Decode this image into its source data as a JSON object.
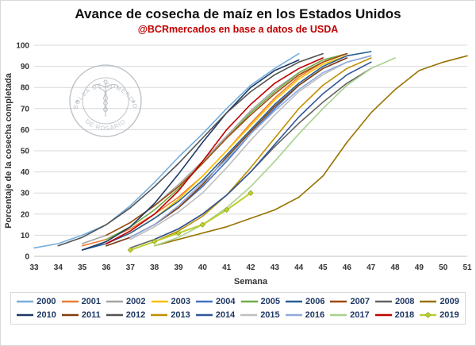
{
  "chart_data": {
    "type": "line",
    "title": "Avance de cosecha de maíz en los Estados Unidos",
    "subtitle": "@BCRmercados en base a datos de USDA",
    "xlabel": "Semana",
    "ylabel": "Porcentaje de la cosecha completada",
    "xlim": [
      33,
      51
    ],
    "ylim": [
      0,
      100
    ],
    "x_ticks": [
      33,
      34,
      35,
      36,
      37,
      38,
      39,
      40,
      41,
      42,
      43,
      44,
      45,
      46,
      47,
      48,
      49,
      50,
      51
    ],
    "y_ticks": [
      0,
      10,
      20,
      30,
      40,
      50,
      60,
      70,
      80,
      90,
      100
    ],
    "grid": "horizontal",
    "legend_position": "bottom",
    "series": [
      {
        "name": "2000",
        "color": "#74AEDC",
        "marker": false,
        "points": [
          [
            33,
            4
          ],
          [
            34,
            6
          ],
          [
            35,
            10
          ],
          [
            36,
            15
          ],
          [
            37,
            24
          ],
          [
            38,
            35
          ],
          [
            39,
            47
          ],
          [
            40,
            58
          ],
          [
            41,
            70
          ],
          [
            42,
            81
          ],
          [
            43,
            89
          ],
          [
            44,
            96
          ]
        ]
      },
      {
        "name": "2001",
        "color": "#ED7D31",
        "marker": false,
        "points": [
          [
            35,
            5
          ],
          [
            36,
            8
          ],
          [
            37,
            13
          ],
          [
            38,
            20
          ],
          [
            39,
            28
          ],
          [
            40,
            38
          ],
          [
            41,
            50
          ],
          [
            42,
            63
          ],
          [
            43,
            75
          ],
          [
            44,
            85
          ],
          [
            45,
            92
          ],
          [
            46,
            96
          ]
        ]
      },
      {
        "name": "2002",
        "color": "#A5A5A5",
        "marker": false,
        "points": [
          [
            35,
            6
          ],
          [
            36,
            10
          ],
          [
            37,
            16
          ],
          [
            38,
            24
          ],
          [
            39,
            34
          ],
          [
            40,
            45
          ],
          [
            41,
            57
          ],
          [
            42,
            69
          ],
          [
            43,
            79
          ],
          [
            44,
            87
          ],
          [
            45,
            93
          ],
          [
            46,
            96
          ]
        ]
      },
      {
        "name": "2003",
        "color": "#FFC000",
        "marker": false,
        "points": [
          [
            36,
            6
          ],
          [
            37,
            11
          ],
          [
            38,
            18
          ],
          [
            39,
            27
          ],
          [
            40,
            38
          ],
          [
            41,
            50
          ],
          [
            42,
            62
          ],
          [
            43,
            74
          ],
          [
            44,
            84
          ],
          [
            45,
            91
          ],
          [
            46,
            95
          ]
        ]
      },
      {
        "name": "2004",
        "color": "#4472C4",
        "marker": false,
        "points": [
          [
            36,
            5
          ],
          [
            37,
            9
          ],
          [
            38,
            15
          ],
          [
            39,
            23
          ],
          [
            40,
            33
          ],
          [
            41,
            45
          ],
          [
            42,
            58
          ],
          [
            43,
            70
          ],
          [
            44,
            81
          ],
          [
            45,
            89
          ],
          [
            46,
            94
          ]
        ]
      },
      {
        "name": "2005",
        "color": "#70AD47",
        "marker": false,
        "points": [
          [
            36,
            8
          ],
          [
            37,
            14
          ],
          [
            38,
            22
          ],
          [
            39,
            32
          ],
          [
            40,
            44
          ],
          [
            41,
            56
          ],
          [
            42,
            68
          ],
          [
            43,
            78
          ],
          [
            44,
            87
          ],
          [
            45,
            93
          ],
          [
            46,
            96
          ]
        ]
      },
      {
        "name": "2006",
        "color": "#255E91",
        "marker": false,
        "points": [
          [
            35,
            3
          ],
          [
            36,
            6
          ],
          [
            37,
            11
          ],
          [
            38,
            18
          ],
          [
            39,
            26
          ],
          [
            40,
            36
          ],
          [
            41,
            48
          ],
          [
            42,
            60
          ],
          [
            43,
            72
          ],
          [
            44,
            82
          ],
          [
            45,
            90
          ],
          [
            46,
            95
          ],
          [
            47,
            97
          ]
        ]
      },
      {
        "name": "2007",
        "color": "#9E480E",
        "marker": false,
        "points": [
          [
            36,
            10
          ],
          [
            37,
            16
          ],
          [
            38,
            24
          ],
          [
            39,
            33
          ],
          [
            40,
            44
          ],
          [
            41,
            56
          ],
          [
            42,
            67
          ],
          [
            43,
            77
          ],
          [
            44,
            86
          ],
          [
            45,
            92
          ],
          [
            46,
            96
          ]
        ]
      },
      {
        "name": "2008",
        "color": "#636363",
        "marker": false,
        "points": [
          [
            37,
            4
          ],
          [
            38,
            8
          ],
          [
            39,
            13
          ],
          [
            40,
            20
          ],
          [
            41,
            29
          ],
          [
            42,
            40
          ],
          [
            43,
            52
          ],
          [
            44,
            63
          ],
          [
            45,
            73
          ],
          [
            46,
            82
          ],
          [
            47,
            89
          ]
        ]
      },
      {
        "name": "2009",
        "color": "#987300",
        "marker": false,
        "points": [
          [
            38,
            5
          ],
          [
            39,
            8
          ],
          [
            40,
            11
          ],
          [
            41,
            14
          ],
          [
            42,
            18
          ],
          [
            43,
            22
          ],
          [
            44,
            28
          ],
          [
            45,
            38
          ],
          [
            46,
            54
          ],
          [
            47,
            68
          ],
          [
            48,
            79
          ],
          [
            49,
            88
          ],
          [
            50,
            92
          ],
          [
            51,
            95
          ]
        ]
      },
      {
        "name": "2010",
        "color": "#1F3864",
        "marker": false,
        "points": [
          [
            35,
            3
          ],
          [
            36,
            7
          ],
          [
            37,
            14
          ],
          [
            38,
            25
          ],
          [
            39,
            39
          ],
          [
            40,
            54
          ],
          [
            41,
            68
          ],
          [
            42,
            80
          ],
          [
            43,
            88
          ],
          [
            44,
            93
          ]
        ]
      },
      {
        "name": "2011",
        "color": "#843C0C",
        "marker": false,
        "points": [
          [
            36,
            5
          ],
          [
            37,
            9
          ],
          [
            38,
            15
          ],
          [
            39,
            23
          ],
          [
            40,
            34
          ],
          [
            41,
            47
          ],
          [
            42,
            59
          ],
          [
            43,
            71
          ],
          [
            44,
            81
          ],
          [
            45,
            89
          ],
          [
            46,
            94
          ]
        ]
      },
      {
        "name": "2012",
        "color": "#525252",
        "marker": false,
        "points": [
          [
            34,
            5
          ],
          [
            35,
            9
          ],
          [
            36,
            15
          ],
          [
            37,
            23
          ],
          [
            38,
            33
          ],
          [
            39,
            44
          ],
          [
            40,
            56
          ],
          [
            41,
            68
          ],
          [
            42,
            78
          ],
          [
            43,
            86
          ],
          [
            44,
            92
          ],
          [
            45,
            96
          ]
        ]
      },
      {
        "name": "2013",
        "color": "#BF8F00",
        "marker": false,
        "points": [
          [
            38,
            7
          ],
          [
            39,
            12
          ],
          [
            40,
            19
          ],
          [
            41,
            29
          ],
          [
            42,
            42
          ],
          [
            43,
            56
          ],
          [
            44,
            70
          ],
          [
            45,
            81
          ],
          [
            46,
            89
          ],
          [
            47,
            94
          ]
        ]
      },
      {
        "name": "2014",
        "color": "#2F5597",
        "marker": false,
        "points": [
          [
            38,
            8
          ],
          [
            39,
            13
          ],
          [
            40,
            20
          ],
          [
            41,
            29
          ],
          [
            42,
            40
          ],
          [
            43,
            53
          ],
          [
            44,
            66
          ],
          [
            45,
            77
          ],
          [
            46,
            86
          ],
          [
            47,
            92
          ]
        ]
      },
      {
        "name": "2015",
        "color": "#BFBFBF",
        "marker": false,
        "points": [
          [
            37,
            8
          ],
          [
            38,
            14
          ],
          [
            39,
            21
          ],
          [
            40,
            30
          ],
          [
            41,
            42
          ],
          [
            42,
            55
          ],
          [
            43,
            67
          ],
          [
            44,
            78
          ],
          [
            45,
            86
          ],
          [
            46,
            92
          ],
          [
            47,
            95
          ]
        ]
      },
      {
        "name": "2016",
        "color": "#8FAADC",
        "marker": false,
        "points": [
          [
            37,
            9
          ],
          [
            38,
            15
          ],
          [
            39,
            24
          ],
          [
            40,
            35
          ],
          [
            41,
            46
          ],
          [
            42,
            58
          ],
          [
            43,
            69
          ],
          [
            44,
            79
          ],
          [
            45,
            87
          ],
          [
            46,
            92
          ],
          [
            47,
            95
          ]
        ]
      },
      {
        "name": "2017",
        "color": "#A9D18E",
        "marker": false,
        "points": [
          [
            38,
            5
          ],
          [
            39,
            9
          ],
          [
            40,
            15
          ],
          [
            41,
            23
          ],
          [
            42,
            33
          ],
          [
            43,
            45
          ],
          [
            44,
            58
          ],
          [
            45,
            70
          ],
          [
            46,
            81
          ],
          [
            47,
            89
          ],
          [
            48,
            94
          ]
        ]
      },
      {
        "name": "2018",
        "color": "#C00000",
        "marker": false,
        "points": [
          [
            36,
            6
          ],
          [
            37,
            12
          ],
          [
            38,
            20
          ],
          [
            39,
            31
          ],
          [
            40,
            45
          ],
          [
            41,
            60
          ],
          [
            42,
            72
          ],
          [
            43,
            82
          ],
          [
            44,
            89
          ],
          [
            45,
            94
          ]
        ]
      },
      {
        "name": "2019",
        "color": "#BDCF32",
        "marker": true,
        "points": [
          [
            37,
            3
          ],
          [
            38,
            7
          ],
          [
            39,
            11
          ],
          [
            40,
            15
          ],
          [
            41,
            22
          ],
          [
            42,
            30
          ]
        ]
      }
    ]
  },
  "watermark": {
    "top_text": "BOLSA DE COMERCIO",
    "bottom_text": "DE ROSARIO",
    "separator": "★"
  }
}
